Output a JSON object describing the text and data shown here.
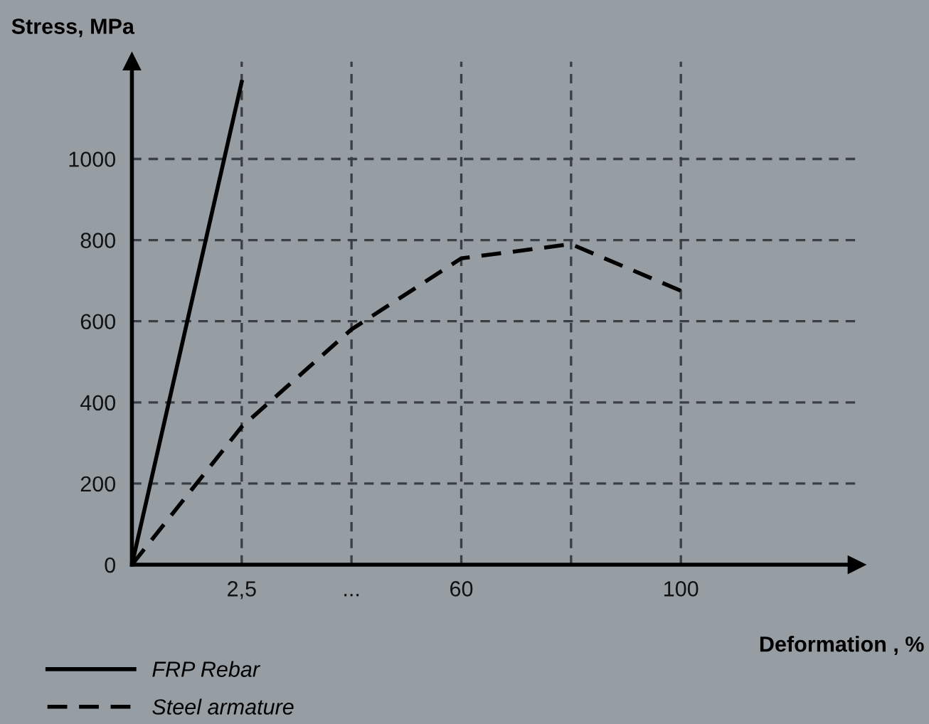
{
  "chart_data": {
    "type": "line",
    "xlabel": "Deformation , %",
    "ylabel": "Stress, MPa",
    "categories": [
      null,
      "2,5",
      "...",
      "60",
      null,
      "100"
    ],
    "ylim": [
      0,
      1240
    ],
    "yticks": [
      0,
      200,
      400,
      600,
      800,
      1000
    ],
    "grid": true,
    "legend": "bottom left",
    "series": [
      {
        "name": "FRP Rebar",
        "color": "#000000",
        "line_style": "solid",
        "values": [
          0,
          1190,
          null,
          null,
          null,
          null
        ]
      },
      {
        "name": "Steel armature",
        "color": "#000000",
        "line_style": "dashed",
        "values": [
          0,
          340,
          580,
          755,
          790,
          675
        ]
      }
    ]
  }
}
